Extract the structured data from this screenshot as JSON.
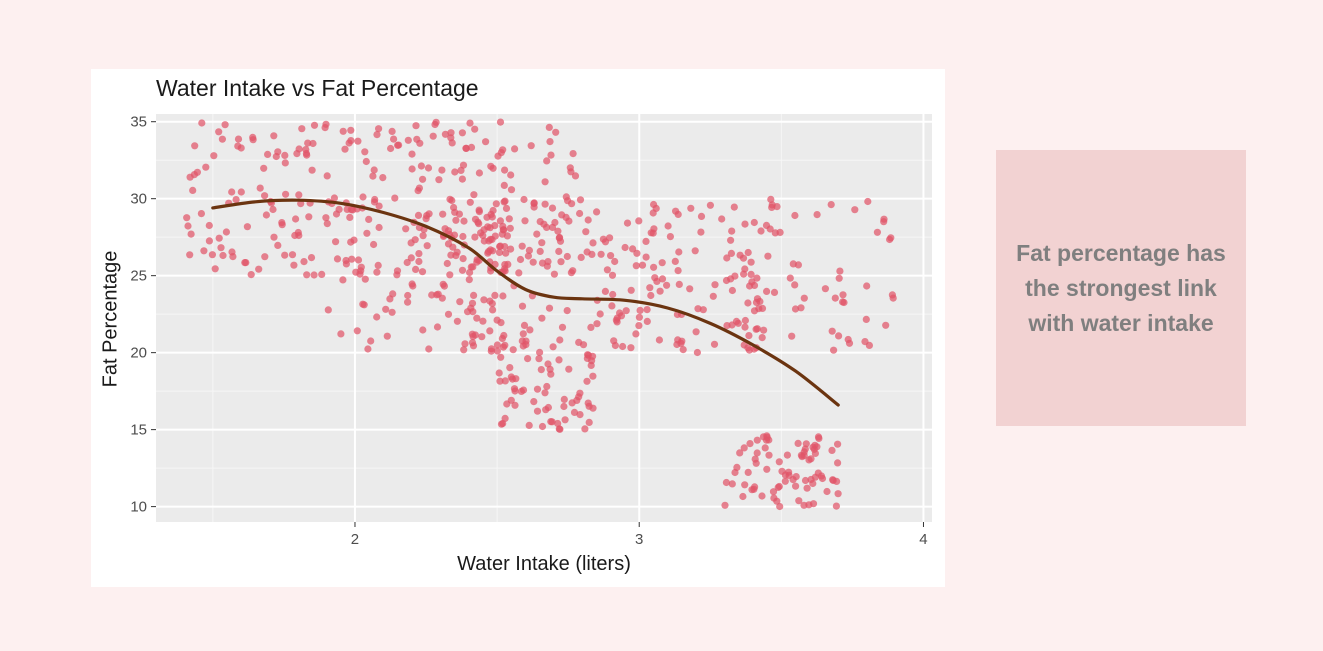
{
  "chart_data": {
    "type": "scatter",
    "title": "Water Intake vs Fat Percentage",
    "xlabel": "Water Intake (liters)",
    "ylabel": "Fat Percentage",
    "xlim": [
      1.3,
      4.03
    ],
    "ylim": [
      9.0,
      35.5
    ],
    "x_ticks": [
      2,
      3,
      4
    ],
    "y_ticks": [
      10,
      15,
      20,
      25,
      30,
      35
    ],
    "grid": true,
    "legend": "none",
    "point_color": "#e05468",
    "trend_color": "#6b3410",
    "clusters": [
      {
        "x_range": [
          1.4,
          2.8
        ],
        "y_range": [
          25.0,
          35.0
        ],
        "count": 260
      },
      {
        "x_range": [
          1.9,
          2.55
        ],
        "y_range": [
          20.0,
          29.0
        ],
        "count": 90
      },
      {
        "x_range": [
          2.4,
          3.5
        ],
        "y_range": [
          20.0,
          30.0
        ],
        "count": 200
      },
      {
        "x_range": [
          2.5,
          2.85
        ],
        "y_range": [
          15.0,
          21.0
        ],
        "count": 70
      },
      {
        "x_range": [
          3.3,
          3.9
        ],
        "y_range": [
          20.0,
          30.0
        ],
        "count": 60
      },
      {
        "x_range": [
          3.3,
          3.7
        ],
        "y_range": [
          10.0,
          15.0
        ],
        "count": 80
      }
    ],
    "trend_line": {
      "x": [
        1.5,
        1.65,
        1.8,
        1.95,
        2.1,
        2.25,
        2.4,
        2.5,
        2.6,
        2.7,
        2.8,
        2.95,
        3.1,
        3.25,
        3.4,
        3.55,
        3.7
      ],
      "y": [
        29.4,
        29.8,
        29.9,
        29.7,
        29.1,
        28.2,
        26.8,
        25.3,
        24.1,
        23.6,
        23.5,
        23.4,
        22.9,
        21.9,
        20.5,
        18.8,
        16.6
      ]
    }
  },
  "annotation": {
    "text": "Fat percentage has the strongest link with water intake"
  }
}
